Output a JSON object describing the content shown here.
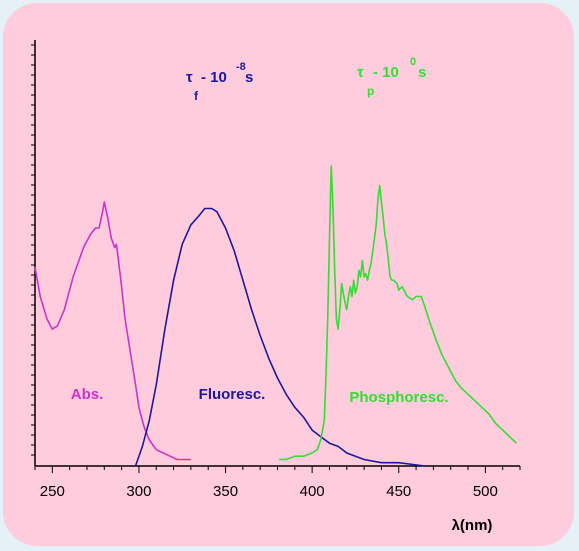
{
  "colors": {
    "background": "#e6f0f7",
    "card": "#ffccdd",
    "axis": "#000000",
    "absorption": "#cc33cc",
    "fluorescence": "#1a1a99",
    "phosphorescence": "#33dd33"
  },
  "chart_data": {
    "type": "line",
    "xlabel": "λ(nm)",
    "ylabel": "",
    "xlim": [
      240,
      520
    ],
    "ylim": [
      0,
      100
    ],
    "x_ticks": [
      "250",
      "300",
      "350",
      "400",
      "450",
      "500"
    ],
    "y_axis_ticks_labeled": false,
    "grid": false,
    "annotations": {
      "fluor_tau": {
        "symbol": "τ",
        "sub": "f",
        "text": " - 10",
        "sup": "-8",
        "unit": " s"
      },
      "phos_tau": {
        "symbol": "τ",
        "sub": "p",
        "text": " - 10",
        "sup": "0",
        "unit": " s"
      }
    },
    "series": [
      {
        "name": "Abs.",
        "points": [
          [
            240,
            61
          ],
          [
            243,
            52
          ],
          [
            247,
            45
          ],
          [
            250,
            42
          ],
          [
            253,
            43
          ],
          [
            257,
            48
          ],
          [
            262,
            58
          ],
          [
            268,
            67
          ],
          [
            272,
            71
          ],
          [
            275,
            73
          ],
          [
            277,
            73
          ],
          [
            279,
            78
          ],
          [
            280,
            81
          ],
          [
            282,
            76
          ],
          [
            284,
            70
          ],
          [
            286,
            67
          ],
          [
            287,
            68
          ],
          [
            288,
            64
          ],
          [
            290,
            55
          ],
          [
            292,
            45
          ],
          [
            295,
            35
          ],
          [
            298,
            25
          ],
          [
            300,
            18
          ],
          [
            303,
            12
          ],
          [
            306,
            8
          ],
          [
            310,
            5
          ],
          [
            314,
            4
          ],
          [
            318,
            3
          ],
          [
            322,
            2
          ],
          [
            326,
            2
          ],
          [
            330,
            2
          ]
        ]
      },
      {
        "name": "Fluoresc.",
        "points": [
          [
            298,
            0
          ],
          [
            302,
            6
          ],
          [
            306,
            14
          ],
          [
            310,
            25
          ],
          [
            315,
            42
          ],
          [
            320,
            57
          ],
          [
            325,
            68
          ],
          [
            330,
            74
          ],
          [
            335,
            77
          ],
          [
            338,
            79
          ],
          [
            342,
            79
          ],
          [
            345,
            78
          ],
          [
            350,
            73
          ],
          [
            355,
            66
          ],
          [
            360,
            57
          ],
          [
            365,
            48
          ],
          [
            370,
            40
          ],
          [
            375,
            33
          ],
          [
            380,
            27
          ],
          [
            385,
            22
          ],
          [
            390,
            18
          ],
          [
            395,
            15
          ],
          [
            400,
            11
          ],
          [
            405,
            9
          ],
          [
            410,
            7
          ],
          [
            415,
            6
          ],
          [
            420,
            4
          ],
          [
            425,
            3
          ],
          [
            430,
            2
          ],
          [
            440,
            1
          ],
          [
            450,
            1
          ],
          [
            465,
            0
          ]
        ]
      },
      {
        "name": "Phosphoresc.",
        "points": [
          [
            381,
            2
          ],
          [
            385,
            2
          ],
          [
            390,
            3
          ],
          [
            395,
            3
          ],
          [
            400,
            4
          ],
          [
            403,
            5
          ],
          [
            405,
            8
          ],
          [
            407,
            14
          ],
          [
            408,
            28
          ],
          [
            409,
            45
          ],
          [
            410,
            70
          ],
          [
            411,
            92
          ],
          [
            412,
            80
          ],
          [
            413,
            60
          ],
          [
            414,
            45
          ],
          [
            415,
            42
          ],
          [
            416,
            48
          ],
          [
            417,
            56
          ],
          [
            418,
            53
          ],
          [
            419,
            50
          ],
          [
            420,
            48
          ],
          [
            421,
            52
          ],
          [
            422,
            55
          ],
          [
            423,
            52
          ],
          [
            424,
            57
          ],
          [
            425,
            53
          ],
          [
            426,
            55
          ],
          [
            427,
            60
          ],
          [
            428,
            58
          ],
          [
            429,
            63
          ],
          [
            430,
            58
          ],
          [
            431,
            59
          ],
          [
            432,
            57
          ],
          [
            433,
            60
          ],
          [
            434,
            62
          ],
          [
            435,
            66
          ],
          [
            436,
            70
          ],
          [
            437,
            74
          ],
          [
            438,
            82
          ],
          [
            439,
            86
          ],
          [
            440,
            81
          ],
          [
            441,
            76
          ],
          [
            442,
            71
          ],
          [
            443,
            68
          ],
          [
            444,
            63
          ],
          [
            445,
            58
          ],
          [
            446,
            57
          ],
          [
            447,
            57
          ],
          [
            449,
            56
          ],
          [
            450,
            54
          ],
          [
            452,
            55
          ],
          [
            455,
            52
          ],
          [
            458,
            51
          ],
          [
            460,
            52
          ],
          [
            463,
            52
          ],
          [
            465,
            49
          ],
          [
            468,
            44
          ],
          [
            470,
            41
          ],
          [
            472,
            38
          ],
          [
            475,
            34
          ],
          [
            478,
            31
          ],
          [
            480,
            29
          ],
          [
            483,
            26
          ],
          [
            486,
            24
          ],
          [
            490,
            22
          ],
          [
            494,
            20
          ],
          [
            498,
            18
          ],
          [
            502,
            16
          ],
          [
            506,
            13
          ],
          [
            510,
            11
          ],
          [
            514,
            9
          ],
          [
            518,
            7
          ]
        ]
      }
    ]
  }
}
